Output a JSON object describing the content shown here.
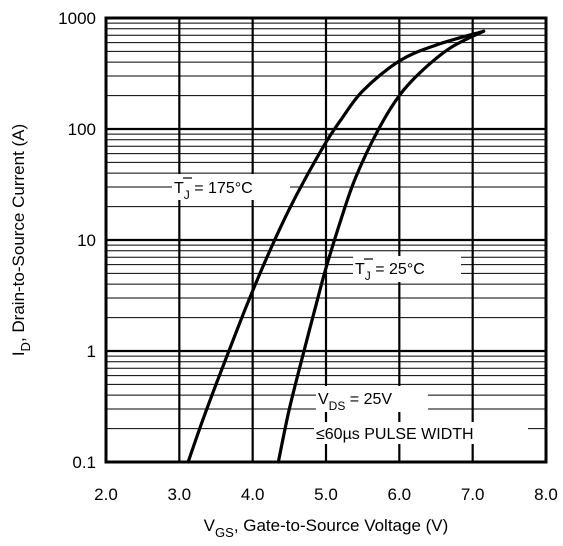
{
  "chart_data": {
    "type": "line",
    "title": "",
    "xlabel": {
      "main": "V",
      "sub": "GS",
      "rest": ", Gate-to-Source Voltage (V)"
    },
    "ylabel": {
      "main": "I",
      "sub": "D",
      "rest": ", Drain-to-Source Current  (A)"
    },
    "xlim": [
      2.0,
      8.0
    ],
    "ylim": [
      0.1,
      1000
    ],
    "yscale": "log",
    "grid": true,
    "x_ticks": [
      "2.0",
      "3.0",
      "4.0",
      "5.0",
      "6.0",
      "7.0",
      "8.0"
    ],
    "y_ticks": [
      "0.1",
      "1",
      "10",
      "100",
      "1000"
    ],
    "series": [
      {
        "label_main": "T",
        "label_sub": "J",
        "label_rest": " = 175°C",
        "x": [
          3.12,
          3.3,
          3.5,
          3.7,
          3.9,
          4.1,
          4.3,
          4.5,
          4.7,
          5.0,
          5.2,
          5.5,
          6.0,
          6.5,
          7.15
        ],
        "y": [
          0.1,
          0.22,
          0.5,
          1.1,
          2.4,
          5.0,
          10,
          19,
          34,
          76,
          120,
          220,
          410,
          570,
          760
        ]
      },
      {
        "label_main": "T",
        "label_sub": "J",
        "label_rest": " = 25°C",
        "x": [
          4.35,
          4.5,
          4.7,
          4.9,
          5.0,
          5.2,
          5.4,
          5.7,
          6.0,
          6.3,
          6.7,
          7.15
        ],
        "y": [
          0.1,
          0.3,
          1.0,
          3.2,
          5.6,
          15,
          36,
          95,
          200,
          330,
          540,
          760
        ]
      }
    ],
    "annotations": [
      {
        "main": "V",
        "sub": "DS",
        "rest": " = 25V"
      },
      {
        "text": "≤60µs PULSE WIDTH"
      }
    ]
  }
}
